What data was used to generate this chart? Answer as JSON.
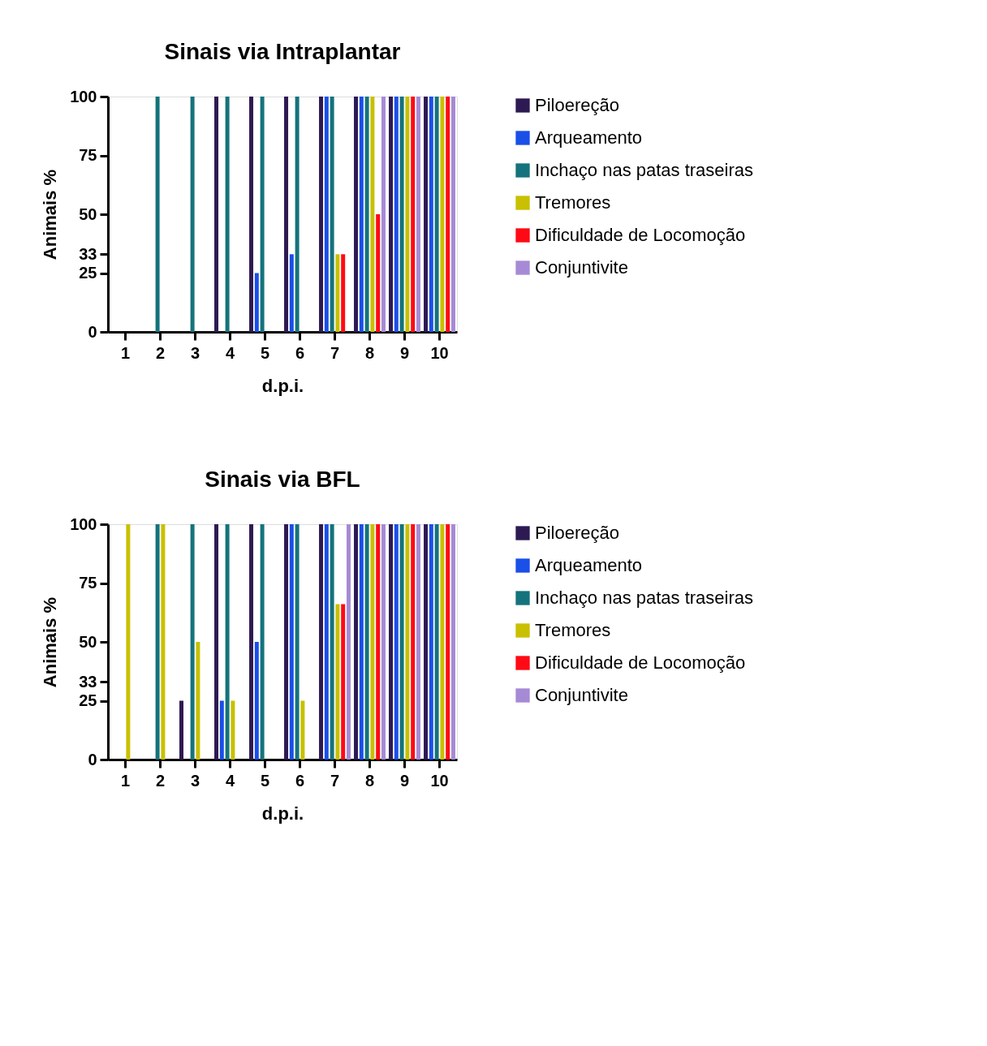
{
  "chart_data": [
    {
      "type": "bar",
      "title": "Sinais via Intraplantar",
      "xlabel": "d.p.i.",
      "ylabel": "Animais %",
      "categories": [
        "1",
        "2",
        "3",
        "4",
        "5",
        "6",
        "7",
        "8",
        "9",
        "10"
      ],
      "ylim": [
        0,
        100
      ],
      "yticks": [
        0,
        25,
        33,
        50,
        75,
        100
      ],
      "grid": false,
      "legend": "top right",
      "series": [
        {
          "name": "Piloereção",
          "color": "#2e1a52",
          "values": [
            0,
            0,
            0,
            100,
            100,
            100,
            100,
            100,
            100,
            100
          ]
        },
        {
          "name": "Arqueamento",
          "color": "#1a4fe8",
          "values": [
            0,
            0,
            0,
            0,
            25,
            33,
            100,
            100,
            100,
            100
          ]
        },
        {
          "name": "Inchaço nas patas traseiras",
          "color": "#14737c",
          "values": [
            0,
            100,
            100,
            100,
            100,
            100,
            100,
            100,
            100,
            100
          ]
        },
        {
          "name": "Tremores",
          "color": "#c8c000",
          "values": [
            0,
            0,
            0,
            0,
            0,
            0,
            33,
            100,
            100,
            100
          ]
        },
        {
          "name": "Dificuldade de Locomoção",
          "color": "#ff0a14",
          "values": [
            0,
            0,
            0,
            0,
            0,
            0,
            33,
            50,
            100,
            100
          ]
        },
        {
          "name": "Conjuntivite",
          "color": "#a68ad6",
          "values": [
            0,
            0,
            0,
            0,
            0,
            0,
            0,
            100,
            100,
            100
          ]
        }
      ]
    },
    {
      "type": "bar",
      "title": "Sinais via BFL",
      "xlabel": "d.p.i.",
      "ylabel": "Animais %",
      "categories": [
        "1",
        "2",
        "3",
        "4",
        "5",
        "6",
        "7",
        "8",
        "9",
        "10"
      ],
      "ylim": [
        0,
        100
      ],
      "yticks": [
        0,
        25,
        33,
        50,
        75,
        100
      ],
      "grid": false,
      "legend": "top right",
      "series": [
        {
          "name": "Piloereção",
          "color": "#2e1a52",
          "values": [
            0,
            0,
            25,
            100,
            100,
            100,
            100,
            100,
            100,
            100
          ]
        },
        {
          "name": "Arqueamento",
          "color": "#1a4fe8",
          "values": [
            0,
            0,
            0,
            25,
            50,
            100,
            100,
            100,
            100,
            100
          ]
        },
        {
          "name": "Inchaço nas patas traseiras",
          "color": "#14737c",
          "values": [
            0,
            100,
            100,
            100,
            100,
            100,
            100,
            100,
            100,
            100
          ]
        },
        {
          "name": "Tremores",
          "color": "#c8c000",
          "values": [
            100,
            100,
            50,
            25,
            0,
            25,
            66,
            100,
            100,
            100
          ]
        },
        {
          "name": "Dificuldade de Locomoção",
          "color": "#ff0a14",
          "values": [
            0,
            0,
            0,
            0,
            0,
            0,
            66,
            100,
            100,
            100
          ]
        },
        {
          "name": "Conjuntivite",
          "color": "#a68ad6",
          "values": [
            0,
            0,
            0,
            0,
            0,
            0,
            100,
            100,
            100,
            100
          ]
        }
      ]
    }
  ]
}
